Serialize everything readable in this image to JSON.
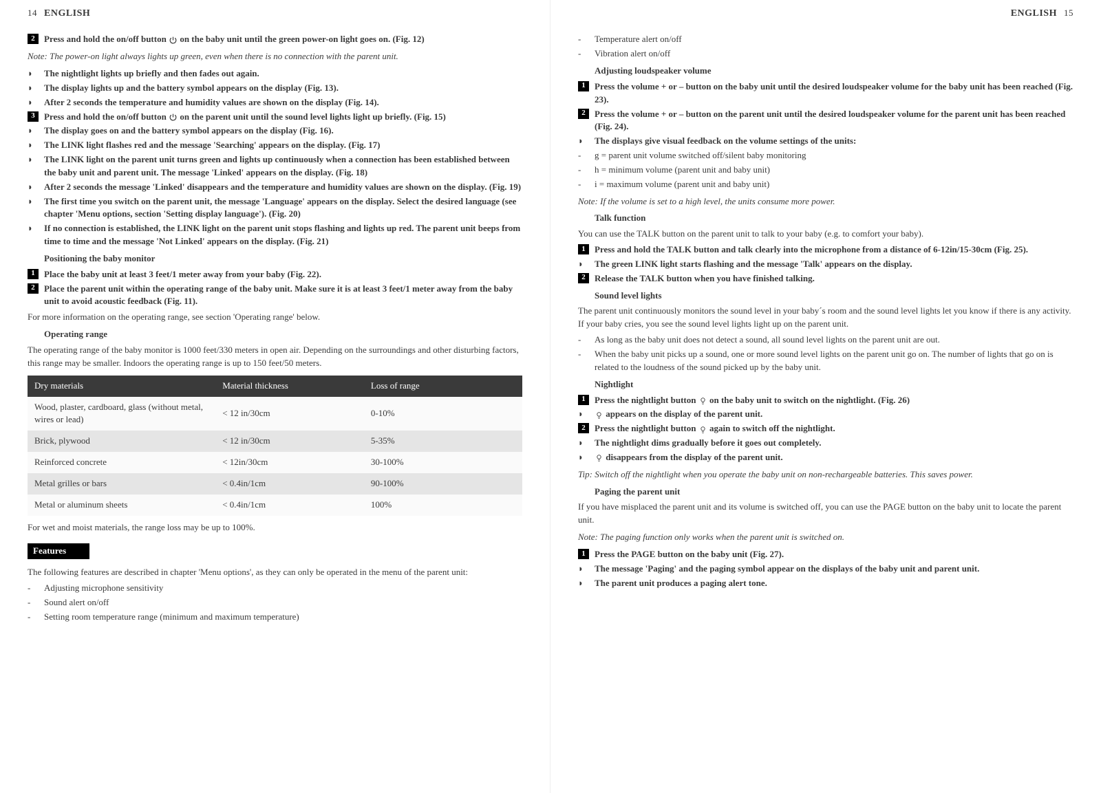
{
  "left": {
    "pageNum": "14",
    "headerLang": "ENGLISH",
    "blocks": [
      {
        "type": "step",
        "num": "2",
        "textParts": [
          "Press and hold the on/off button  ",
          "POWER",
          " on the baby unit until the green power-on light goes on.  (Fig. 12)"
        ]
      },
      {
        "type": "note",
        "text": "Note: The power-on light always lights up green, even when there is no connection with the parent unit."
      },
      {
        "type": "bullet",
        "bold": true,
        "text": "The nightlight lights up briefly and then fades out again."
      },
      {
        "type": "bullet",
        "bold": true,
        "text": "The display lights up and the battery symbol appears on the display (Fig. 13)."
      },
      {
        "type": "bullet",
        "bold": true,
        "text": "After 2 seconds the temperature and humidity values are shown on the display (Fig. 14)."
      },
      {
        "type": "step",
        "num": "3",
        "textParts": [
          "Press and hold the on/off button ",
          "POWER",
          " on the parent unit until the sound level lights light up briefly.  (Fig. 15)"
        ]
      },
      {
        "type": "bullet",
        "bold": true,
        "text": "The display goes on and the battery symbol appears on the display (Fig. 16)."
      },
      {
        "type": "bullet",
        "bold": true,
        "text": "The LINK light flashes red and the message 'Searching' appears on the display.  (Fig. 17)"
      },
      {
        "type": "bullet",
        "bold": true,
        "text": "The LINK light on the parent unit turns green and lights up continuously when a connection has been established between the baby unit and parent unit. The message 'Linked' appears on the display.  (Fig. 18)"
      },
      {
        "type": "bullet",
        "bold": true,
        "text": "After 2 seconds the message 'Linked' disappears and the temperature and humidity values are shown on the display.  (Fig. 19)"
      },
      {
        "type": "bullet",
        "bold": true,
        "text": "The first time you switch on the parent unit, the message 'Language' appears on the display. Select the desired language (see chapter 'Menu options, section 'Setting display language').  (Fig. 20)"
      },
      {
        "type": "bullet",
        "bold": true,
        "text": "If no connection is established, the LINK light on the parent unit stops flashing and lights up red. The parent unit beeps from time to time and the message 'Not Linked' appears on the display.  (Fig. 21)"
      },
      {
        "type": "sectionIndent",
        "text": "Positioning the baby monitor"
      },
      {
        "type": "step",
        "num": "1",
        "text": "Place the baby unit at least 3 feet/1 meter away from your baby (Fig. 22)."
      },
      {
        "type": "step",
        "num": "2",
        "text": "Place the parent unit within the operating range of the baby unit. Make sure it is at least 3 feet/1 meter away from the baby unit to avoid acoustic feedback (Fig. 11)."
      },
      {
        "type": "plain",
        "text": "For more information on the operating range, see section 'Operating range' below."
      },
      {
        "type": "sectionIndent",
        "text": "Operating range"
      },
      {
        "type": "plain",
        "text": "The operating range of the baby monitor is 1000 feet/330 meters in open air. Depending on the surroundings and other disturbing factors, this range may be smaller. Indoors the operating range is up to 150 feet/50 meters."
      }
    ],
    "table": {
      "headers": [
        "Dry materials",
        "Material thickness",
        "Loss of range"
      ],
      "rows": [
        {
          "cells": [
            "Wood, plaster, cardboard, glass (without metal, wires or lead)",
            "< 12 in/30cm",
            "0-10%"
          ],
          "stripe": false
        },
        {
          "cells": [
            "Brick, plywood",
            "< 12 in/30cm",
            "5-35%"
          ],
          "stripe": true
        },
        {
          "cells": [
            "Reinforced concrete",
            "< 12in/30cm",
            "30-100%"
          ],
          "stripe": false
        },
        {
          "cells": [
            "Metal grilles or bars",
            "< 0.4in/1cm",
            "90-100%"
          ],
          "stripe": true
        },
        {
          "cells": [
            "Metal or aluminum sheets",
            "< 0.4in/1cm",
            "100%"
          ],
          "stripe": false
        }
      ],
      "colWidths": [
        "38%",
        "30%",
        "32%"
      ]
    },
    "afterTable": [
      {
        "type": "plain",
        "text": "For wet and moist materials, the range loss may be up to 100%."
      },
      {
        "type": "sectionBar",
        "text": "Features"
      },
      {
        "type": "plain",
        "text": "The following features are described in chapter 'Menu options', as they can only be operated in the menu of the parent unit:"
      },
      {
        "type": "dash",
        "text": "Adjusting microphone sensitivity"
      },
      {
        "type": "dash",
        "text": "Sound alert on/off"
      },
      {
        "type": "dash",
        "text": "Setting room temperature range (minimum and maximum temperature)"
      }
    ]
  },
  "right": {
    "pageNum": "15",
    "headerLang": "ENGLISH",
    "blocks": [
      {
        "type": "dash",
        "text": "Temperature alert on/off"
      },
      {
        "type": "dash",
        "text": "Vibration alert on/off"
      },
      {
        "type": "sectionIndent",
        "text": "Adjusting loudspeaker volume"
      },
      {
        "type": "step",
        "num": "1",
        "text": "Press the volume + or – button on the baby unit until the desired loudspeaker volume for the baby unit has been reached (Fig. 23)."
      },
      {
        "type": "step",
        "num": "2",
        "text": "Press the volume + or – button on the parent unit until the desired loudspeaker volume for the parent unit has been reached (Fig. 24)."
      },
      {
        "type": "bullet",
        "bold": true,
        "text": "The displays give visual feedback on the volume settings of the units:"
      },
      {
        "type": "dash",
        "text": "g = parent unit volume switched off/silent baby monitoring"
      },
      {
        "type": "dash",
        "text": "h =  minimum volume (parent unit and baby unit)"
      },
      {
        "type": "dash",
        "text": "i = maximum volume (parent unit and baby unit)"
      },
      {
        "type": "note",
        "text": "Note: If the volume is set to a high level, the units consume more power."
      },
      {
        "type": "sectionIndent",
        "text": "Talk function"
      },
      {
        "type": "plain",
        "text": "You can use the TALK button on the parent unit to talk to your baby (e.g. to comfort your baby)."
      },
      {
        "type": "step",
        "num": "1",
        "text": "Press and hold the TALK button and talk clearly into the microphone from a distance of 6-12in/15-30cm (Fig. 25)."
      },
      {
        "type": "bullet",
        "bold": true,
        "text": "The green LINK light starts flashing and the message 'Talk' appears on the display."
      },
      {
        "type": "step",
        "num": "2",
        "text": "Release the TALK button when you have finished talking."
      },
      {
        "type": "sectionIndent",
        "text": "Sound level lights"
      },
      {
        "type": "plain",
        "text": "The parent unit continuously monitors the sound level in your baby´s room and the sound level lights let you know if there is any activity. If your baby cries, you see the sound level lights light up on the parent unit."
      },
      {
        "type": "dash",
        "text": "As long as the baby unit does not detect a sound, all sound level lights on the parent unit are out."
      },
      {
        "type": "dash",
        "text": "When the baby unit picks up a sound, one or more sound level lights on the parent unit go on. The number of lights that go on is related to the loudness of the sound picked up by the baby unit."
      },
      {
        "type": "sectionIndent",
        "text": "Nightlight"
      },
      {
        "type": "step",
        "num": "1",
        "textParts": [
          "Press the nightlight button ",
          "LIGHT",
          " on the baby unit to switch on the nightlight.  (Fig. 26)"
        ]
      },
      {
        "type": "bullet",
        "bold": true,
        "textParts": [
          "",
          "LIGHT",
          " appears on the display of the parent unit."
        ]
      },
      {
        "type": "step",
        "num": "2",
        "textParts": [
          "Press the nightlight button ",
          "LIGHT",
          " again to switch off the nightlight."
        ]
      },
      {
        "type": "bullet",
        "bold": true,
        "text": "The nightlight dims gradually before it goes out completely."
      },
      {
        "type": "bullet",
        "bold": true,
        "textParts": [
          "",
          "LIGHT",
          " disappears from the display of the parent unit."
        ]
      },
      {
        "type": "note",
        "text": "Tip: Switch off the nightlight when you operate the baby unit on non-rechargeable batteries. This saves power."
      },
      {
        "type": "sectionIndent",
        "text": "Paging the parent unit"
      },
      {
        "type": "plain",
        "text": "If you have misplaced the parent unit and its volume is switched off, you can use the PAGE button on the baby unit to locate the parent unit."
      },
      {
        "type": "note",
        "text": "Note: The paging function only works when the parent unit is switched on."
      },
      {
        "type": "step",
        "num": "1",
        "text": "Press the PAGE button on the baby unit (Fig. 27)."
      },
      {
        "type": "bullet",
        "bold": true,
        "text": "The message 'Paging' and the paging symbol appear on the displays of the baby unit and parent unit."
      },
      {
        "type": "bullet",
        "bold": true,
        "text": "The parent unit produces a paging alert tone."
      }
    ]
  },
  "icons": {
    "POWER": "⏻",
    "LIGHT": "☼"
  }
}
